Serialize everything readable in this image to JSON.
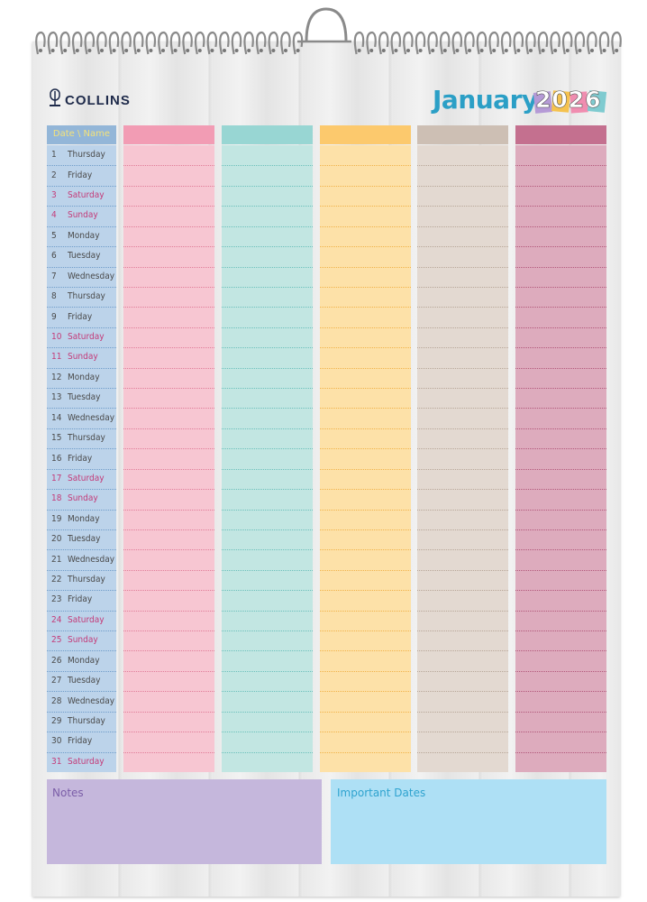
{
  "brand": "COLLINS",
  "month": "January",
  "year": "2026",
  "header_label": "Date \\ Name",
  "date_column": {
    "header_color": "#93b6d8",
    "body_color": "#bcd3ea",
    "line_color": "#6f9cc9",
    "header_text_color": "#f4e27a"
  },
  "columns": [
    {
      "header_color": "#f29cb4",
      "body_color": "#f7c6d2",
      "line_color": "#e07d99"
    },
    {
      "header_color": "#98d6d3",
      "body_color": "#c2e6e2",
      "line_color": "#6cc0bb"
    },
    {
      "header_color": "#fcc96d",
      "body_color": "#fde1a8",
      "line_color": "#f0b24a"
    },
    {
      "header_color": "#cdbfb4",
      "body_color": "#e3d9d1",
      "line_color": "#b7a698"
    },
    {
      "header_color": "#c4708f",
      "body_color": "#ddabbd",
      "line_color": "#b2577a"
    }
  ],
  "days": [
    {
      "number": 1,
      "name": "Thursday",
      "color": "#4a4a4a"
    },
    {
      "number": 2,
      "name": "Friday",
      "color": "#4a4a4a"
    },
    {
      "number": 3,
      "name": "Saturday",
      "color": "#c43a78"
    },
    {
      "number": 4,
      "name": "Sunday",
      "color": "#c43a78"
    },
    {
      "number": 5,
      "name": "Monday",
      "color": "#4a4a4a"
    },
    {
      "number": 6,
      "name": "Tuesday",
      "color": "#4a4a4a"
    },
    {
      "number": 7,
      "name": "Wednesday",
      "color": "#4a4a4a"
    },
    {
      "number": 8,
      "name": "Thursday",
      "color": "#4a4a4a"
    },
    {
      "number": 9,
      "name": "Friday",
      "color": "#4a4a4a"
    },
    {
      "number": 10,
      "name": "Saturday",
      "color": "#c43a78"
    },
    {
      "number": 11,
      "name": "Sunday",
      "color": "#c43a78"
    },
    {
      "number": 12,
      "name": "Monday",
      "color": "#4a4a4a"
    },
    {
      "number": 13,
      "name": "Tuesday",
      "color": "#4a4a4a"
    },
    {
      "number": 14,
      "name": "Wednesday",
      "color": "#4a4a4a"
    },
    {
      "number": 15,
      "name": "Thursday",
      "color": "#4a4a4a"
    },
    {
      "number": 16,
      "name": "Friday",
      "color": "#4a4a4a"
    },
    {
      "number": 17,
      "name": "Saturday",
      "color": "#c43a78"
    },
    {
      "number": 18,
      "name": "Sunday",
      "color": "#c43a78"
    },
    {
      "number": 19,
      "name": "Monday",
      "color": "#4a4a4a"
    },
    {
      "number": 20,
      "name": "Tuesday",
      "color": "#4a4a4a"
    },
    {
      "number": 21,
      "name": "Wednesday",
      "color": "#4a4a4a"
    },
    {
      "number": 22,
      "name": "Thursday",
      "color": "#4a4a4a"
    },
    {
      "number": 23,
      "name": "Friday",
      "color": "#4a4a4a"
    },
    {
      "number": 24,
      "name": "Saturday",
      "color": "#c43a78"
    },
    {
      "number": 25,
      "name": "Sunday",
      "color": "#c43a78"
    },
    {
      "number": 26,
      "name": "Monday",
      "color": "#4a4a4a"
    },
    {
      "number": 27,
      "name": "Tuesday",
      "color": "#4a4a4a"
    },
    {
      "number": 28,
      "name": "Wednesday",
      "color": "#4a4a4a"
    },
    {
      "number": 29,
      "name": "Thursday",
      "color": "#4a4a4a"
    },
    {
      "number": 30,
      "name": "Friday",
      "color": "#4a4a4a"
    },
    {
      "number": 31,
      "name": "Saturday",
      "color": "#c43a78"
    }
  ],
  "notes": {
    "label": "Notes",
    "color": "#c5b7dc",
    "text_color": "#7b5ea8"
  },
  "important_dates": {
    "label": "Important Dates",
    "color": "#aee0f5",
    "text_color": "#2fa3cf"
  }
}
